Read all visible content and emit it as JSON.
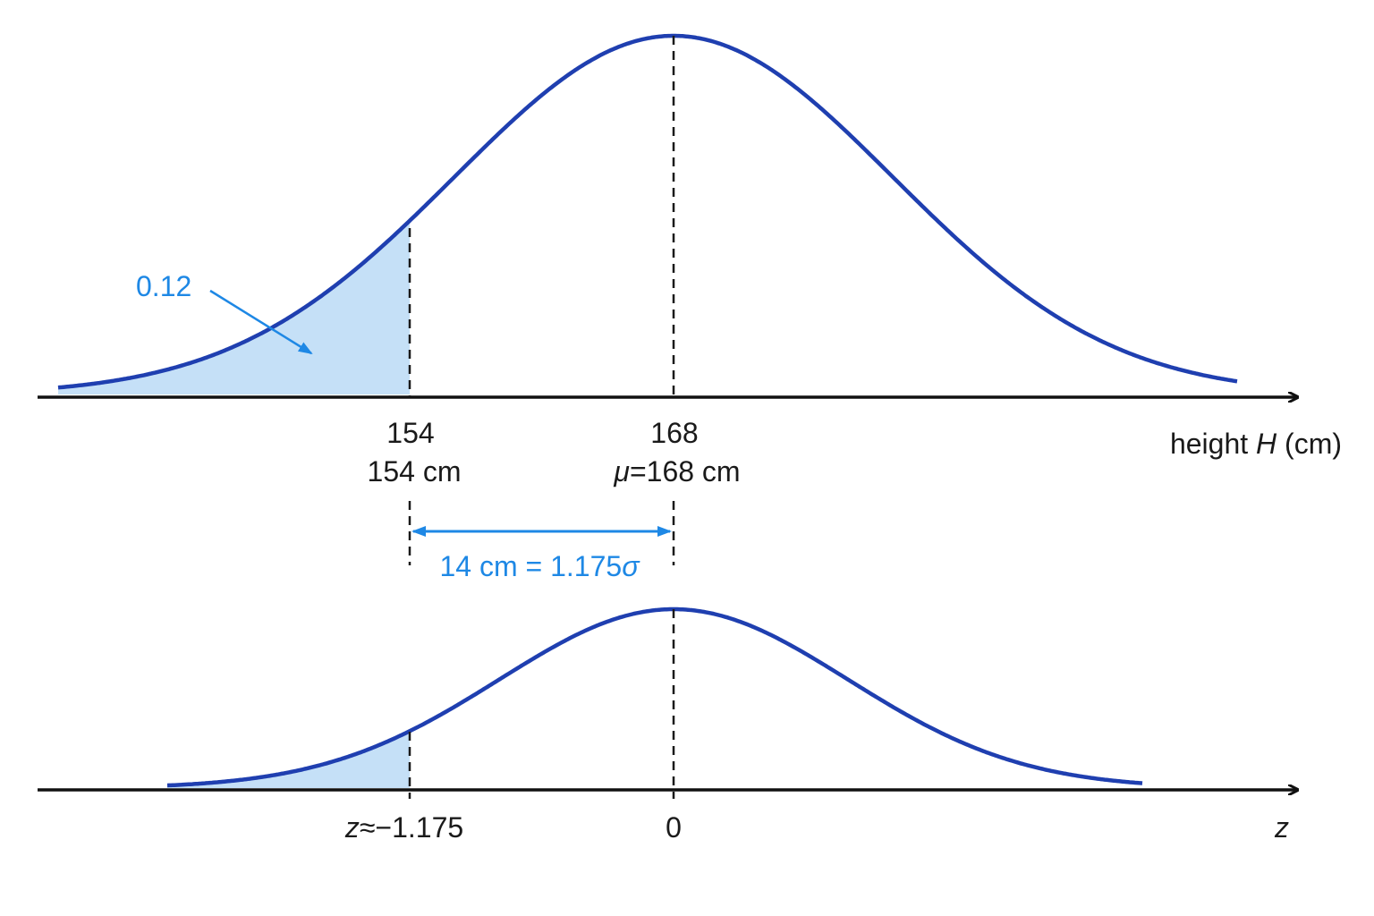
{
  "top_panel": {
    "area_label": "0.12",
    "ticks": [
      {
        "number": "154",
        "note": "154 cm"
      },
      {
        "number": "168",
        "note": [
          "μ",
          "=168 cm"
        ]
      }
    ],
    "axis_label": [
      "height ",
      "H",
      " (cm)"
    ]
  },
  "distance_label": [
    "14 cm = 1.175",
    "σ"
  ],
  "bottom_panel": {
    "ticks": [
      [
        "z",
        "≈−1.175"
      ],
      "0"
    ],
    "axis_label": "z"
  }
}
